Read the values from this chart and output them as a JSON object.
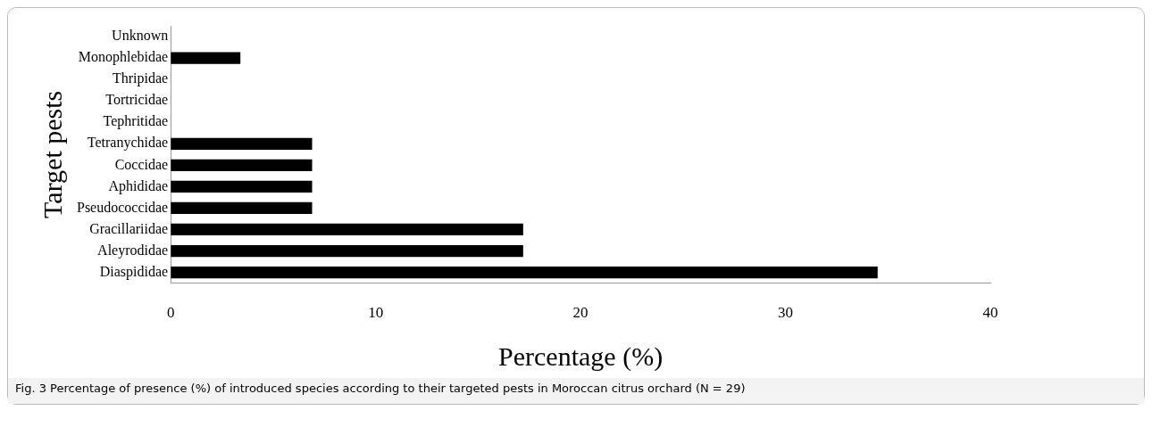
{
  "chart_data": {
    "type": "bar",
    "orientation": "horizontal",
    "categories": [
      "Unknown",
      "Monophlebidae",
      "Thripidae",
      "Tortricidae",
      "Tephritidae",
      "Tetranychidae",
      "Coccidae",
      "Aphididae",
      "Pseudococcidae",
      "Gracillariidae",
      "Aleyrodidae",
      "Diaspididae"
    ],
    "values": [
      0,
      3.4,
      0,
      0,
      0,
      6.9,
      6.9,
      6.9,
      6.9,
      17.2,
      17.2,
      34.5
    ],
    "color": "#000000",
    "xlim": [
      0,
      40
    ],
    "xticks": [
      0,
      10,
      20,
      30,
      40
    ],
    "xlabel": "Percentage (%)",
    "ylabel": "Target pests",
    "grid": false,
    "legend": false,
    "annotations": [
      "Fig. 3 Percentage of presence (%) of introduced species according to their targeted pests in Moroccan citrus orchard (N = 29)"
    ]
  }
}
